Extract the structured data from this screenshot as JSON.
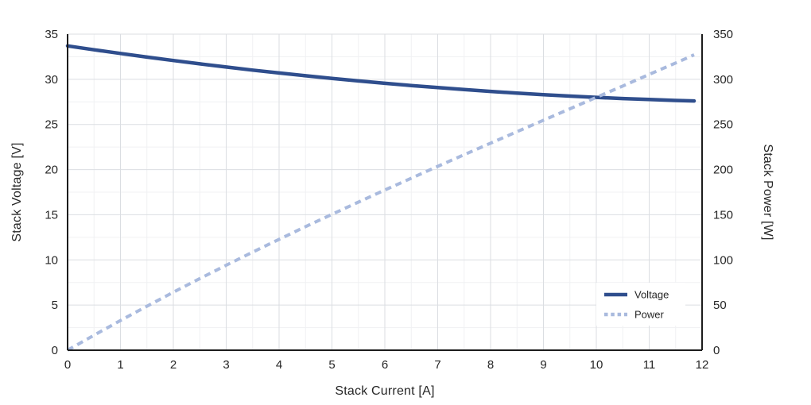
{
  "chart_data": {
    "type": "line",
    "title": "",
    "x_axis": {
      "label": "Stack Current [A]",
      "min": 0,
      "max": 12,
      "major_ticks": [
        0,
        1,
        2,
        3,
        4,
        5,
        6,
        7,
        8,
        9,
        10,
        11,
        12
      ],
      "minor_step": 0.5,
      "grid": true
    },
    "y_left": {
      "label": "Stack Voltage [V]",
      "min": 0,
      "max": 35,
      "major_ticks": [
        0,
        5,
        10,
        15,
        20,
        25,
        30,
        35
      ],
      "minor_step": 2.5,
      "grid": true
    },
    "y_right": {
      "label": "Stack Power [W]",
      "min": 0,
      "max": 350,
      "major_ticks": [
        0,
        50,
        100,
        150,
        200,
        250,
        300,
        350
      ]
    },
    "x": [
      0,
      0.5,
      1,
      1.5,
      2,
      2.5,
      3,
      3.5,
      4,
      4.5,
      5,
      5.5,
      6,
      6.5,
      7,
      7.5,
      8,
      8.5,
      9,
      9.5,
      10,
      10.5,
      11,
      11.5,
      11.85
    ],
    "series": [
      {
        "name": "Voltage",
        "axis": "left",
        "style": "solid",
        "color": "#2F4E8D",
        "values": [
          33.7,
          33.27,
          32.86,
          32.46,
          32.08,
          31.71,
          31.36,
          31.02,
          30.7,
          30.39,
          30.1,
          29.82,
          29.56,
          29.31,
          29.08,
          28.86,
          28.66,
          28.47,
          28.3,
          28.14,
          28.0,
          27.87,
          27.76,
          27.66,
          27.6
        ]
      },
      {
        "name": "Power",
        "axis": "right",
        "style": "dashed",
        "color": "#A9BADE",
        "values": [
          0,
          16.6,
          32.9,
          48.7,
          64.2,
          79.3,
          94.1,
          108.6,
          122.8,
          136.8,
          150.5,
          164.0,
          177.4,
          190.5,
          203.6,
          216.5,
          229.3,
          242.0,
          254.7,
          267.3,
          280.0,
          292.6,
          305.4,
          318.1,
          327.1
        ]
      }
    ],
    "legend": {
      "position": "bottom-right",
      "entries": [
        {
          "label": "Voltage",
          "color": "#2F4E8D",
          "style": "solid"
        },
        {
          "label": "Power",
          "color": "#A9BADE",
          "style": "dashed"
        }
      ]
    },
    "colors": {
      "axis_line": "#1c1c1c",
      "grid_major": "#dbdee2",
      "grid_minor": "#f0f1f3",
      "tick_text": "#2a2a2a",
      "background": "#ffffff"
    }
  }
}
